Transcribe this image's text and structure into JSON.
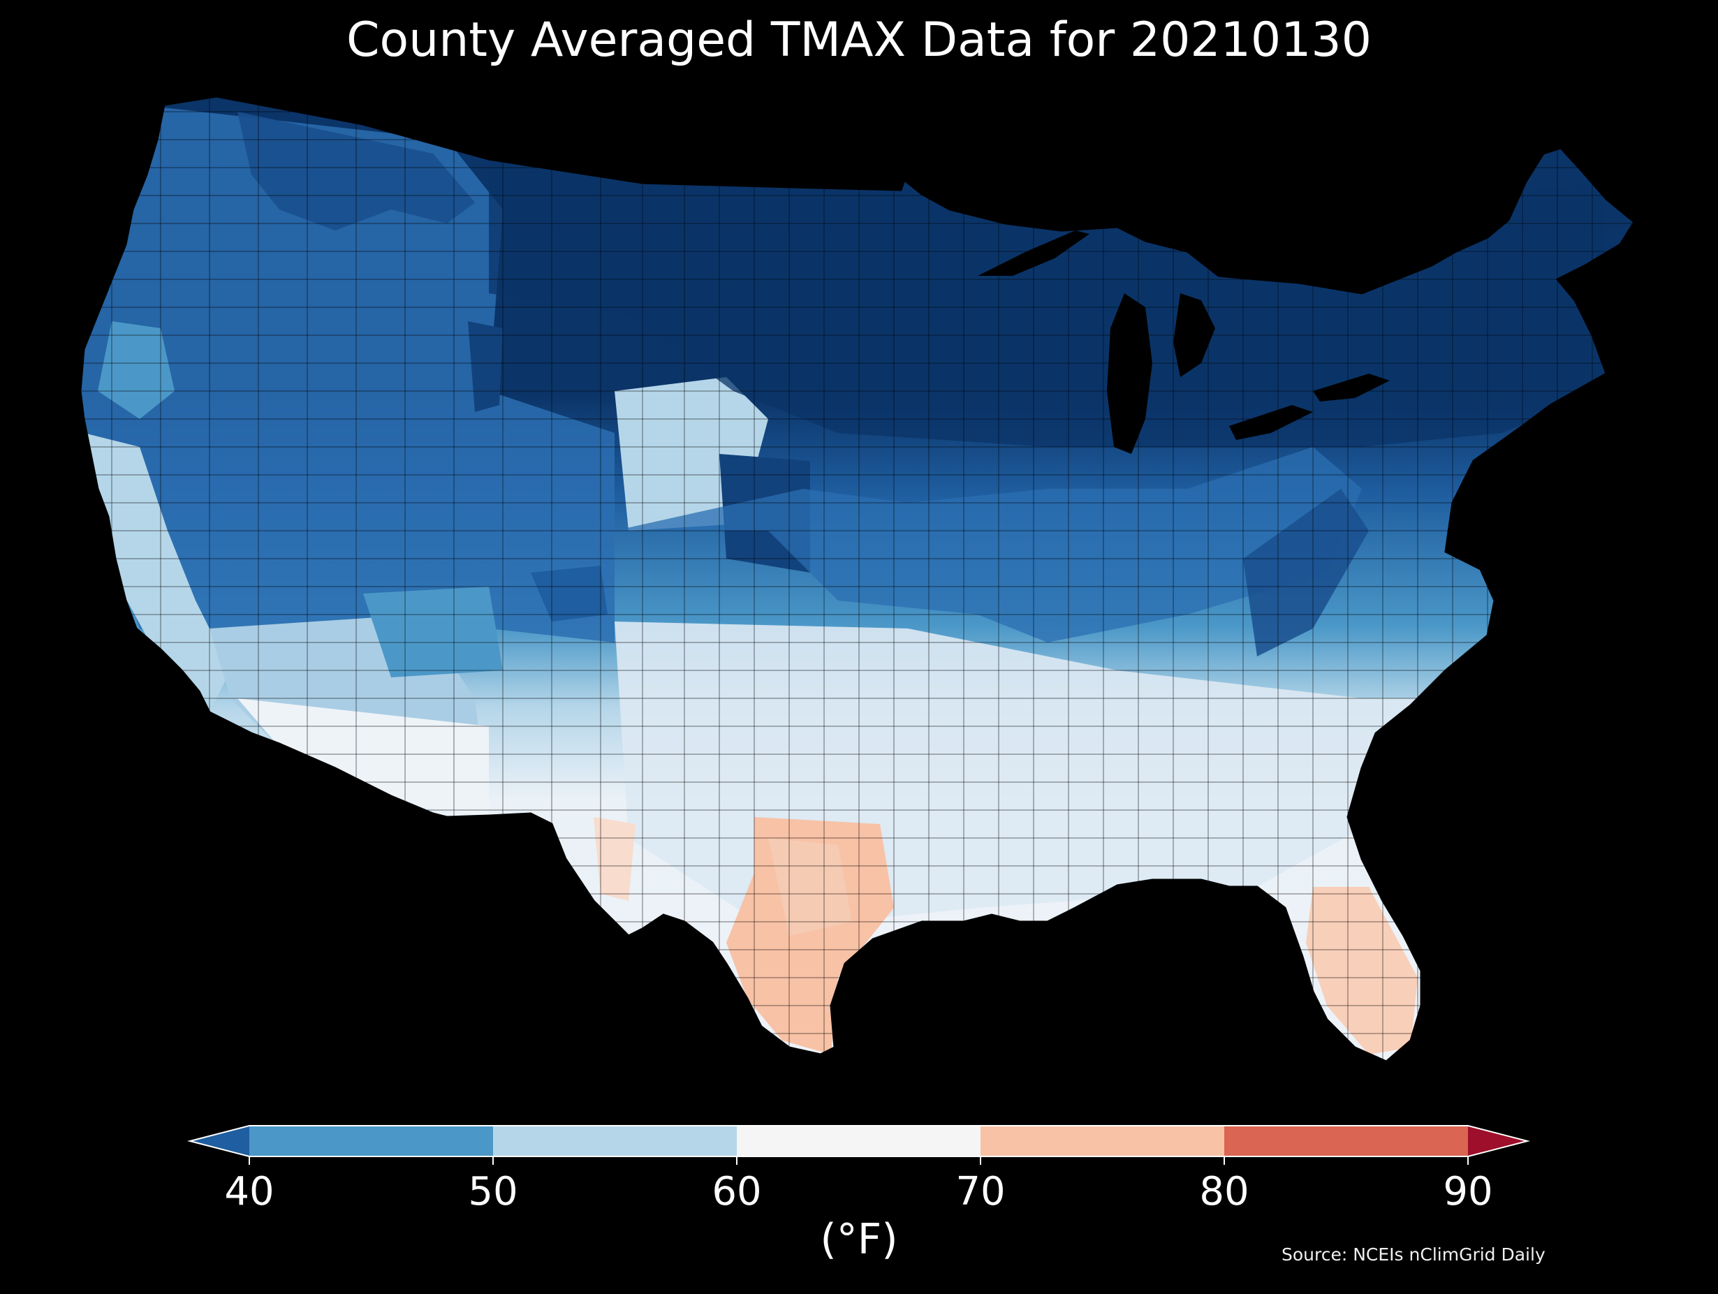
{
  "title": "County Averaged TMAX Data for 20210130",
  "colorbar": {
    "tick_labels": [
      "40",
      "50",
      "60",
      "70",
      "80",
      "90"
    ],
    "units": "(°F)",
    "bins": [
      {
        "from": "below",
        "to": 40,
        "color": "#1f5ea0"
      },
      {
        "from": 40,
        "to": 50,
        "color": "#4b98c8"
      },
      {
        "from": 50,
        "to": 60,
        "color": "#b5d6e9"
      },
      {
        "from": 60,
        "to": 70,
        "color": "#f5f5f5"
      },
      {
        "from": 70,
        "to": 80,
        "color": "#f8c2a6"
      },
      {
        "from": 80,
        "to": 90,
        "color": "#da6552"
      },
      {
        "from": 90,
        "to": "above",
        "color": "#9d0f2a"
      }
    ]
  },
  "source": "Source: NCEIs nClimGrid Daily",
  "map": {
    "region": "Contiguous United States counties",
    "background": "#000000",
    "colors": {
      "very_cold": "#0b3468",
      "cold": "#1f5ea0",
      "cool": "#4b98c8",
      "mild": "#b5d6e9",
      "neutral": "#eef3f8",
      "warm": "#f8c2a6"
    }
  }
}
